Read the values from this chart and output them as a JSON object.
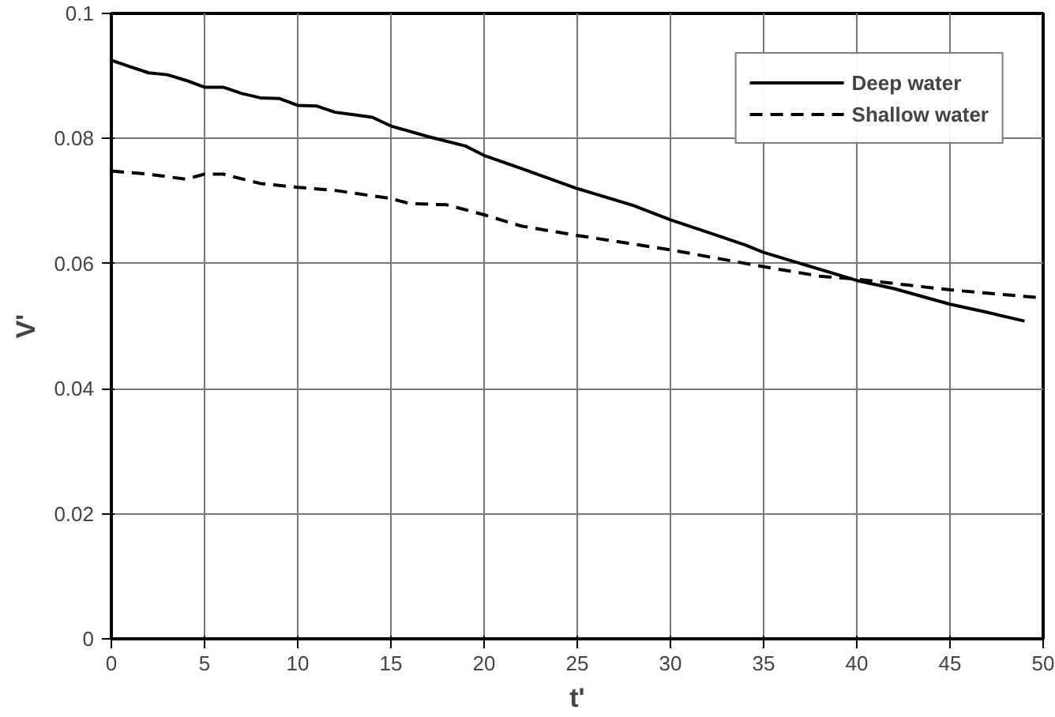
{
  "chart_data": {
    "type": "line",
    "xlabel": "t'",
    "ylabel": "V'",
    "xlim": [
      0,
      50
    ],
    "ylim": [
      0,
      0.1
    ],
    "xticks": [
      0,
      5,
      10,
      15,
      20,
      25,
      30,
      35,
      40,
      45,
      50
    ],
    "yticks": [
      0,
      0.02,
      0.04,
      0.06,
      0.08,
      {
        "value": 0.1,
        "label": "0.1"
      }
    ],
    "grid": true,
    "legend": "top right",
    "marker": "none",
    "series": [
      {
        "name": "Deep water",
        "color": "#000000",
        "line_style": "solid",
        "x": [
          0,
          1,
          2,
          3,
          4,
          5,
          6,
          7,
          8,
          9,
          10,
          11,
          12,
          13,
          14,
          15,
          17,
          19,
          20,
          22,
          25,
          28,
          30,
          32,
          34,
          35,
          37,
          40,
          42,
          45,
          47,
          49
        ],
        "values": [
          0.0925,
          0.0915,
          0.0905,
          0.0902,
          0.0893,
          0.0882,
          0.0882,
          0.0872,
          0.0865,
          0.0864,
          0.0853,
          0.0852,
          0.0842,
          0.0838,
          0.0834,
          0.082,
          0.0803,
          0.0788,
          0.0773,
          0.0752,
          0.072,
          0.0693,
          0.067,
          0.065,
          0.063,
          0.0618,
          0.06,
          0.0573,
          0.056,
          0.0535,
          0.0522,
          0.0508
        ]
      },
      {
        "name": "Shallow water",
        "color": "#000000",
        "line_style": "dashed",
        "x": [
          0,
          2,
          4,
          5,
          6,
          8,
          10,
          12,
          15,
          16,
          18,
          20,
          22,
          25,
          30,
          35,
          38,
          40,
          45,
          50
        ],
        "values": [
          0.0748,
          0.0743,
          0.0735,
          0.0743,
          0.0743,
          0.0728,
          0.0722,
          0.0717,
          0.0704,
          0.0696,
          0.0694,
          0.0678,
          0.066,
          0.0645,
          0.0622,
          0.0595,
          0.058,
          0.0575,
          0.0558,
          0.0545
        ]
      }
    ]
  }
}
